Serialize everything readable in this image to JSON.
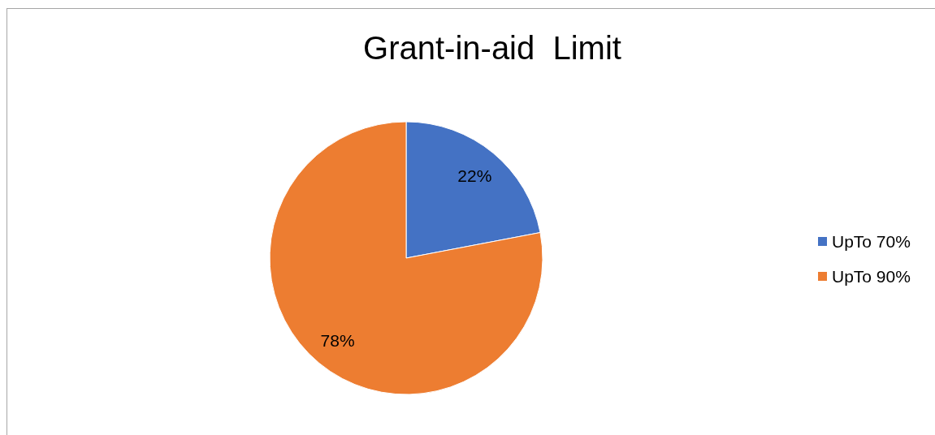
{
  "chart_data": {
    "type": "pie",
    "title": "Grant-in-aid  Limit",
    "categories": [
      "UpTo 70%",
      "UpTo 90%"
    ],
    "values": [
      22,
      78
    ],
    "colors": [
      "#4472c4",
      "#ed7d31"
    ],
    "value_labels": [
      "22%",
      "78%"
    ],
    "legend": "right"
  }
}
